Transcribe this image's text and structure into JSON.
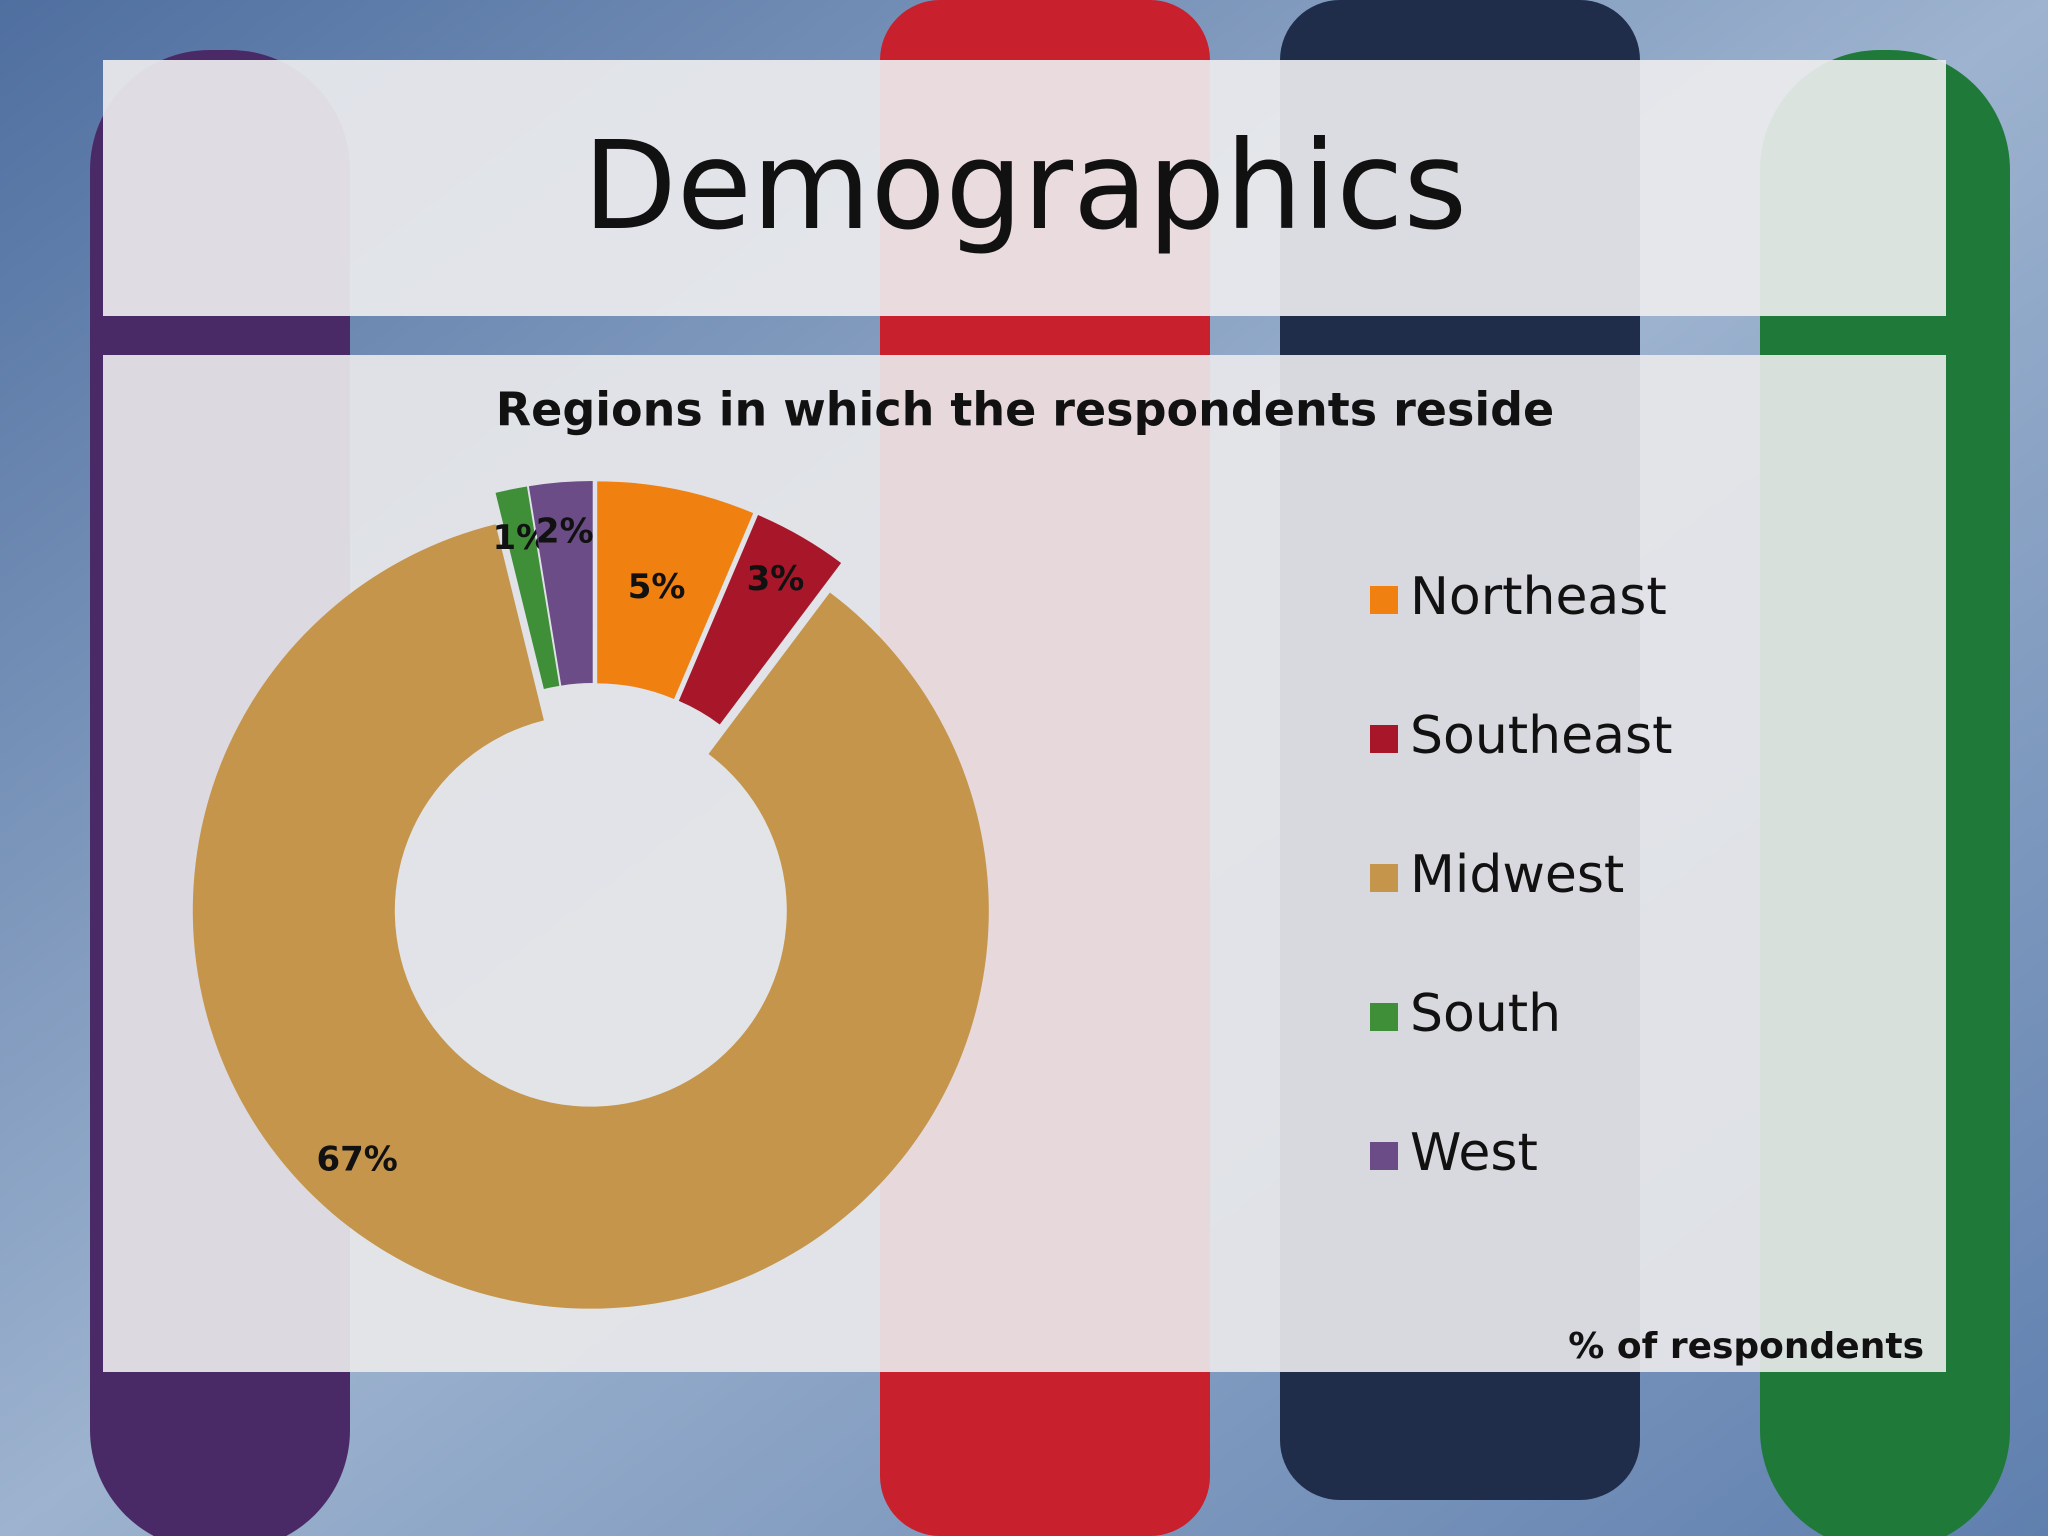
{
  "title": "Demographics",
  "chart_data": {
    "type": "pie",
    "title": "Regions in which the respondents reside",
    "categories": [
      "Northeast",
      "Southeast",
      "Midwest",
      "South",
      "West"
    ],
    "values": [
      5,
      3,
      67,
      1,
      2
    ],
    "value_labels": [
      "5%",
      "3%",
      "67%",
      "1%",
      "2%"
    ],
    "colors": [
      "#f0800f",
      "#a8162a",
      "#c4954a",
      "#3f8f38",
      "#6b4c86"
    ],
    "donut": true,
    "legend": "right",
    "annotation": "% of respondents"
  }
}
